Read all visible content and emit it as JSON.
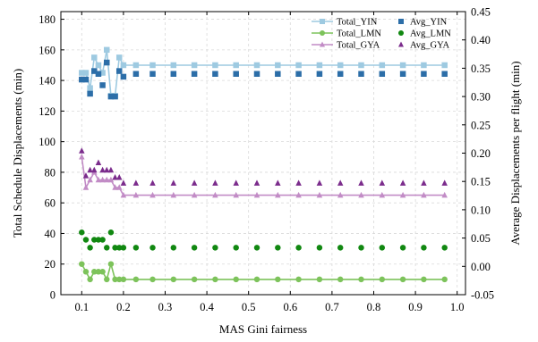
{
  "chart_data": {
    "type": "line",
    "xlabel": "MAS Gini fairness",
    "ylabel_left": "Total Schedule Displacements (min)",
    "ylabel_right": "Average Displacements per flight (min)",
    "xlim": [
      0.05,
      1.02
    ],
    "ylim_left": [
      0,
      185
    ],
    "ylim_right": [
      -0.05,
      0.45
    ],
    "xticks": [
      "0.1",
      "0.2",
      "0.3",
      "0.4",
      "0.5",
      "0.6",
      "0.7",
      "0.8",
      "0.9",
      "1.0"
    ],
    "yticks_left": [
      "0",
      "20",
      "40",
      "60",
      "80",
      "100",
      "120",
      "140",
      "160",
      "180"
    ],
    "yticks_right": [
      "-0.05",
      "0.00",
      "0.05",
      "0.10",
      "0.15",
      "0.20",
      "0.25",
      "0.30",
      "0.35",
      "0.40",
      "0.45"
    ],
    "grid": true,
    "legend_position": "top-right",
    "x": [
      0.1,
      0.11,
      0.12,
      0.13,
      0.14,
      0.15,
      0.16,
      0.17,
      0.18,
      0.19,
      0.2,
      0.23,
      0.27,
      0.32,
      0.37,
      0.42,
      0.47,
      0.52,
      0.57,
      0.62,
      0.67,
      0.72,
      0.77,
      0.82,
      0.87,
      0.92,
      0.97
    ],
    "series": [
      {
        "name": "Total_YIN",
        "axis": "left",
        "style": "line",
        "marker": "square",
        "color": "#9ecae1",
        "values": [
          145,
          145,
          135,
          155,
          150,
          145,
          160,
          130,
          130,
          155,
          150,
          150,
          150,
          150,
          150,
          150,
          150,
          150,
          150,
          150,
          150,
          150,
          150,
          150,
          150,
          150,
          150
        ]
      },
      {
        "name": "Total_LMN",
        "axis": "left",
        "style": "line",
        "marker": "circle",
        "color": "#7dc35b",
        "values": [
          20,
          15,
          10,
          15,
          15,
          15,
          10,
          20,
          10,
          10,
          10,
          10,
          10,
          10,
          10,
          10,
          10,
          10,
          10,
          10,
          10,
          10,
          10,
          10,
          10,
          10,
          10
        ]
      },
      {
        "name": "Total_GYA",
        "axis": "left",
        "style": "line",
        "marker": "triangle",
        "color": "#c28cc6",
        "values": [
          90,
          70,
          75,
          80,
          75,
          75,
          75,
          75,
          70,
          70,
          65,
          65,
          65,
          65,
          65,
          65,
          65,
          65,
          65,
          65,
          65,
          65,
          65,
          65,
          65,
          65,
          65
        ]
      },
      {
        "name": "Avg_YIN",
        "axis": "right",
        "style": "markers",
        "marker": "square",
        "color": "#2c6ea8",
        "values": [
          0.33,
          0.33,
          0.305,
          0.345,
          0.34,
          0.32,
          0.36,
          0.3,
          0.3,
          0.345,
          0.335,
          0.34,
          0.34,
          0.34,
          0.34,
          0.34,
          0.34,
          0.34,
          0.34,
          0.34,
          0.34,
          0.34,
          0.34,
          0.34,
          0.34,
          0.34,
          0.34
        ]
      },
      {
        "name": "Avg_LMN",
        "axis": "right",
        "style": "markers",
        "marker": "circle",
        "color": "#118811",
        "values": [
          0.06,
          0.047,
          0.033,
          0.047,
          0.047,
          0.047,
          0.033,
          0.06,
          0.033,
          0.033,
          0.033,
          0.033,
          0.033,
          0.033,
          0.033,
          0.033,
          0.033,
          0.033,
          0.033,
          0.033,
          0.033,
          0.033,
          0.033,
          0.033,
          0.033,
          0.033,
          0.033
        ]
      },
      {
        "name": "Avg_GYA",
        "axis": "right",
        "style": "markers",
        "marker": "triangle",
        "color": "#7b2c8c",
        "values": [
          0.204,
          0.16,
          0.17,
          0.17,
          0.183,
          0.17,
          0.17,
          0.17,
          0.157,
          0.157,
          0.147,
          0.147,
          0.147,
          0.147,
          0.147,
          0.147,
          0.147,
          0.147,
          0.147,
          0.147,
          0.147,
          0.147,
          0.147,
          0.147,
          0.147,
          0.147,
          0.147
        ]
      }
    ]
  }
}
